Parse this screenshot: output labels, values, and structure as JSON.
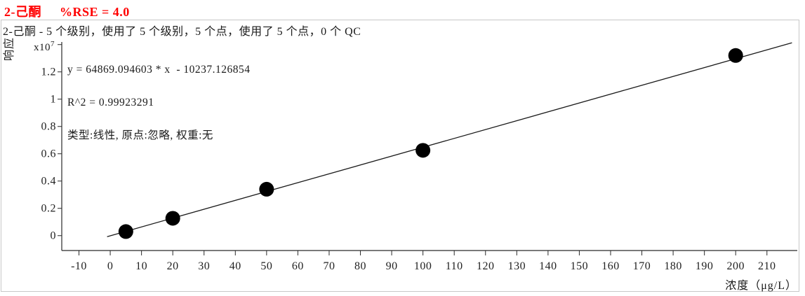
{
  "header": {
    "compound": "2-己酮",
    "rse": "%RSE = 4.0"
  },
  "panel": {
    "subtitle": "2-己酮 - 5 个级别，使用了 5 个级别，5 个点，使用了 5 个点，0 个 QC",
    "stats": {
      "equation": "y = 64869.094603 * x  - 10237.126854",
      "r_squared": "R^2 = 0.99923291",
      "fit_info": "类型:线性, 原点:忽略, 权重:无"
    },
    "y_axis_title": "响应",
    "y_scale_base": "x10",
    "y_scale_exponent": "7",
    "x_axis_title": "浓度（μg/L）"
  },
  "chart_data": {
    "type": "scatter",
    "title": "2-己酮  %RSE = 4.0",
    "subtitle": "2-己酮 - 5 个级别，使用了 5 个级别，5 个点，使用了 5 个点，0 个 QC",
    "xlabel": "浓度（μg/L）",
    "ylabel": "响应",
    "y_scale_factor": "x10^7",
    "x": [
      5,
      20,
      50,
      100,
      200
    ],
    "y_x1e7": [
      0.03,
      0.127,
      0.34,
      0.625,
      1.32
    ],
    "fit": {
      "type": "线性",
      "origin": "忽略",
      "weight": "无",
      "slope": 64869.094603,
      "intercept": -10237.126854,
      "r_squared": 0.99923291,
      "rse_pct": 4.0,
      "line_x_range": [
        -1,
        218
      ]
    },
    "x_ticks": [
      -10,
      0,
      10,
      20,
      30,
      40,
      50,
      60,
      70,
      80,
      90,
      100,
      110,
      120,
      130,
      140,
      150,
      160,
      170,
      180,
      190,
      200,
      210
    ],
    "y_tick_labels": [
      "0",
      "0.2",
      "0.4",
      "0.6",
      "0.8",
      "1",
      "1.2"
    ],
    "y_top_tick_x1e7": 1.4,
    "xlim": [
      -15.5,
      219.7
    ],
    "ylim_x1e7": [
      -0.109,
      1.419
    ],
    "grid": false,
    "legend": false,
    "colors": {
      "title": "#ff0000",
      "points": "#000000",
      "line": "#1a1a1a",
      "axis": "#2a2a2a",
      "border": "#c8c8c8"
    }
  }
}
